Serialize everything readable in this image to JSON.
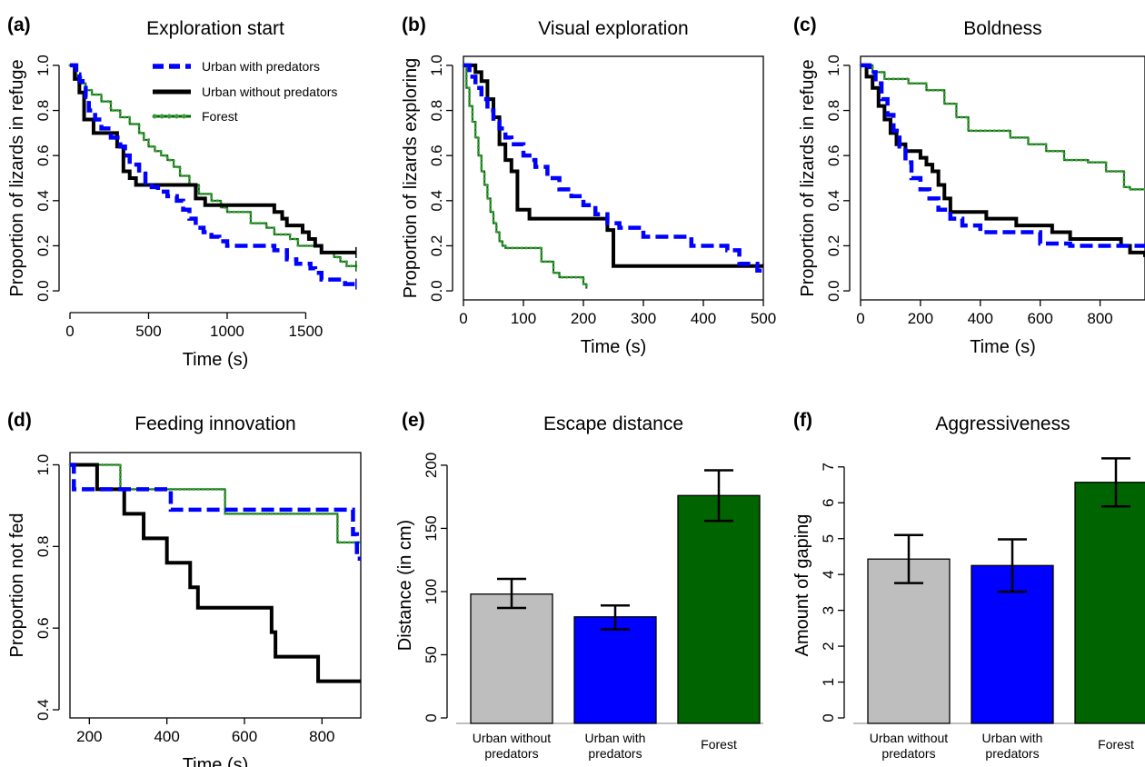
{
  "colors": {
    "urban_with": "#0000ff",
    "urban_without": "#000000",
    "forest": "#006400",
    "forest_dot": "#3a9a3a",
    "bar_urban_without": "#bebebe",
    "bar_urban_with": "#0000ff",
    "bar_forest": "#006400"
  },
  "legend": {
    "urban_with": "Urban with predators",
    "urban_without": "Urban without predators",
    "forest": "Forest"
  },
  "chart_data": [
    {
      "panel": "(a)",
      "type": "line",
      "step": true,
      "title": "Exploration start",
      "xlabel": "Time (s)",
      "ylabel": "Proportion of lizards in refuge",
      "xlim": [
        0,
        1850
      ],
      "ylim": [
        -0.04,
        1.04
      ],
      "xticks": [
        0,
        500,
        1000,
        1500
      ],
      "yticks": [
        0.0,
        0.2,
        0.4,
        0.6,
        0.8,
        1.0
      ],
      "ytick_labels": [
        "0.0",
        "0.2",
        "0.4",
        "0.6",
        "0.8",
        "1.0"
      ],
      "legend_position": "top-right",
      "series": [
        {
          "key": "urban_with",
          "name": "Urban with predators",
          "censored": true,
          "x": [
            0,
            40,
            60,
            80,
            100,
            120,
            160,
            200,
            260,
            320,
            350,
            380,
            440,
            480,
            520,
            560,
            620,
            680,
            720,
            760,
            800,
            850,
            900,
            950,
            1000,
            1150,
            1300,
            1380,
            1440,
            1530,
            1560,
            1600,
            1750,
            1820
          ],
          "y": [
            1.0,
            0.96,
            0.93,
            0.9,
            0.86,
            0.8,
            0.76,
            0.72,
            0.68,
            0.64,
            0.6,
            0.56,
            0.52,
            0.48,
            0.46,
            0.44,
            0.42,
            0.4,
            0.36,
            0.32,
            0.28,
            0.26,
            0.24,
            0.22,
            0.2,
            0.2,
            0.18,
            0.14,
            0.12,
            0.1,
            0.08,
            0.05,
            0.03,
            0.03
          ]
        },
        {
          "key": "urban_without",
          "name": "Urban without predators",
          "censored": true,
          "x": [
            0,
            30,
            60,
            90,
            150,
            300,
            340,
            380,
            420,
            520,
            580,
            800,
            860,
            1250,
            1300,
            1350,
            1380,
            1480,
            1520,
            1560,
            1600,
            1820
          ],
          "y": [
            1.0,
            0.94,
            0.88,
            0.76,
            0.7,
            0.64,
            0.53,
            0.5,
            0.47,
            0.47,
            0.47,
            0.41,
            0.38,
            0.38,
            0.35,
            0.32,
            0.29,
            0.26,
            0.23,
            0.2,
            0.17,
            0.17
          ]
        },
        {
          "key": "forest",
          "name": "Forest",
          "censored": true,
          "x": [
            0,
            40,
            70,
            100,
            140,
            200,
            260,
            320,
            380,
            440,
            470,
            500,
            540,
            580,
            620,
            660,
            700,
            760,
            820,
            900,
            960,
            1000,
            1150,
            1250,
            1300,
            1400,
            1450,
            1600,
            1680,
            1720,
            1760,
            1820
          ],
          "y": [
            1.0,
            0.95,
            0.92,
            0.89,
            0.87,
            0.84,
            0.8,
            0.77,
            0.74,
            0.7,
            0.67,
            0.64,
            0.62,
            0.6,
            0.58,
            0.55,
            0.51,
            0.47,
            0.43,
            0.4,
            0.37,
            0.35,
            0.3,
            0.28,
            0.25,
            0.23,
            0.2,
            0.17,
            0.15,
            0.13,
            0.11,
            0.11
          ]
        }
      ]
    },
    {
      "panel": "(b)",
      "type": "line",
      "step": true,
      "title": "Visual exploration",
      "xlabel": "Time (s)",
      "ylabel": "Proportion of lizards exploring",
      "xlim": [
        0,
        500
      ],
      "ylim": [
        -0.04,
        1.04
      ],
      "xticks": [
        0,
        100,
        200,
        300,
        400,
        500
      ],
      "yticks": [
        0.0,
        0.2,
        0.4,
        0.6,
        0.8,
        1.0
      ],
      "ytick_labels": [
        "0.0",
        "0.2",
        "0.4",
        "0.6",
        "0.8",
        "1.0"
      ],
      "series": [
        {
          "key": "urban_with",
          "name": "Urban with predators",
          "x": [
            0,
            10,
            20,
            30,
            40,
            50,
            60,
            70,
            80,
            100,
            110,
            120,
            140,
            160,
            180,
            200,
            220,
            240,
            260,
            300,
            380,
            440,
            460,
            490,
            500
          ],
          "y": [
            1.0,
            0.95,
            0.9,
            0.85,
            0.8,
            0.75,
            0.72,
            0.68,
            0.65,
            0.6,
            0.58,
            0.55,
            0.5,
            0.45,
            0.42,
            0.38,
            0.34,
            0.3,
            0.28,
            0.24,
            0.2,
            0.18,
            0.12,
            0.09,
            0.09
          ]
        },
        {
          "key": "urban_without",
          "name": "Urban without predators",
          "x": [
            0,
            20,
            30,
            40,
            50,
            60,
            70,
            80,
            90,
            110,
            160,
            240,
            250,
            500
          ],
          "y": [
            1.0,
            0.97,
            0.93,
            0.85,
            0.77,
            0.65,
            0.58,
            0.53,
            0.36,
            0.32,
            0.32,
            0.27,
            0.11,
            0.11
          ]
        },
        {
          "key": "forest",
          "name": "Forest",
          "x": [
            0,
            5,
            10,
            15,
            20,
            25,
            30,
            35,
            40,
            45,
            50,
            55,
            60,
            65,
            70,
            80,
            90,
            100,
            130,
            150,
            160,
            200,
            205
          ],
          "y": [
            1.0,
            0.9,
            0.82,
            0.75,
            0.68,
            0.6,
            0.53,
            0.47,
            0.41,
            0.35,
            0.3,
            0.26,
            0.22,
            0.2,
            0.19,
            0.19,
            0.19,
            0.19,
            0.13,
            0.08,
            0.06,
            0.03,
            0.01
          ]
        }
      ]
    },
    {
      "panel": "(c)",
      "type": "line",
      "step": true,
      "title": "Boldness",
      "xlabel": "Time (s)",
      "ylabel": "Proportion of lizards in refuge",
      "xlim": [
        0,
        950
      ],
      "ylim": [
        -0.04,
        1.04
      ],
      "xticks": [
        0,
        200,
        400,
        600,
        800
      ],
      "yticks": [
        0.0,
        0.2,
        0.4,
        0.6,
        0.8,
        1.0
      ],
      "ytick_labels": [
        "0.0",
        "0.2",
        "0.4",
        "0.6",
        "0.8",
        "1.0"
      ],
      "series": [
        {
          "key": "urban_with",
          "name": "Urban with predators",
          "x": [
            0,
            30,
            50,
            70,
            90,
            110,
            130,
            150,
            170,
            200,
            230,
            260,
            300,
            340,
            400,
            460,
            600,
            700,
            950
          ],
          "y": [
            1.0,
            0.97,
            0.92,
            0.85,
            0.78,
            0.71,
            0.64,
            0.57,
            0.5,
            0.45,
            0.41,
            0.36,
            0.32,
            0.29,
            0.26,
            0.26,
            0.21,
            0.2,
            0.2
          ]
        },
        {
          "key": "urban_without",
          "name": "Urban without predators",
          "x": [
            0,
            20,
            40,
            60,
            80,
            100,
            120,
            150,
            200,
            220,
            240,
            260,
            280,
            300,
            340,
            420,
            520,
            640,
            700,
            870,
            900,
            950
          ],
          "y": [
            1.0,
            0.95,
            0.9,
            0.82,
            0.76,
            0.7,
            0.65,
            0.62,
            0.59,
            0.56,
            0.53,
            0.47,
            0.41,
            0.35,
            0.35,
            0.32,
            0.29,
            0.26,
            0.23,
            0.2,
            0.17,
            0.15
          ]
        },
        {
          "key": "forest",
          "name": "Forest",
          "x": [
            0,
            40,
            80,
            160,
            220,
            280,
            320,
            360,
            440,
            480,
            500,
            560,
            620,
            680,
            760,
            820,
            880,
            900,
            950
          ],
          "y": [
            1.0,
            0.97,
            0.94,
            0.92,
            0.89,
            0.83,
            0.77,
            0.71,
            0.71,
            0.71,
            0.68,
            0.65,
            0.62,
            0.58,
            0.57,
            0.53,
            0.46,
            0.45,
            0.45
          ]
        }
      ]
    },
    {
      "panel": "(d)",
      "type": "line",
      "step": true,
      "title": "Feeding innovation",
      "xlabel": "Time (s)",
      "ylabel": "Proportion not fed",
      "xlim": [
        150,
        900
      ],
      "ylim": [
        0.38,
        1.03
      ],
      "xticks": [
        200,
        400,
        600,
        800
      ],
      "yticks": [
        0.4,
        0.6,
        0.8,
        1.0
      ],
      "ytick_labels": [
        "0.4",
        "0.6",
        "0.8",
        "1.0"
      ],
      "series": [
        {
          "key": "urban_with",
          "name": "Urban with predators",
          "x": [
            150,
            160,
            400,
            410,
            870,
            880,
            890,
            900
          ],
          "y": [
            1.0,
            0.94,
            0.94,
            0.89,
            0.89,
            0.83,
            0.77,
            0.77
          ]
        },
        {
          "key": "urban_without",
          "name": "Urban without predators",
          "x": [
            150,
            220,
            290,
            340,
            400,
            460,
            480,
            670,
            680,
            790,
            900
          ],
          "y": [
            1.0,
            0.94,
            0.88,
            0.82,
            0.76,
            0.7,
            0.65,
            0.59,
            0.53,
            0.47,
            0.47
          ]
        },
        {
          "key": "forest",
          "name": "Forest",
          "x": [
            150,
            280,
            550,
            840,
            900
          ],
          "y": [
            1.0,
            0.94,
            0.88,
            0.81,
            0.81
          ]
        }
      ]
    },
    {
      "panel": "(e)",
      "type": "bar",
      "title": "Escape distance",
      "xlabel": "",
      "ylabel": "Distance (in cm)",
      "ylim": [
        0,
        210
      ],
      "yticks": [
        0,
        50,
        100,
        150,
        200
      ],
      "ytick_labels": [
        "0",
        "50",
        "100",
        "150",
        "200"
      ],
      "categories": [
        "Urban without predators",
        "Urban with predators",
        "Forest"
      ],
      "category_lines": [
        [
          "Urban without",
          "predators"
        ],
        [
          "Urban with",
          "predators"
        ],
        [
          "Forest"
        ]
      ],
      "category_keys": [
        "bar_urban_without",
        "bar_urban_with",
        "bar_forest"
      ],
      "values": [
        98,
        80,
        176
      ],
      "error_low": [
        87,
        70,
        156
      ],
      "error_high": [
        110,
        89,
        196
      ]
    },
    {
      "panel": "(f)",
      "type": "bar",
      "title": "Aggressiveness",
      "xlabel": "",
      "ylabel": "Amount of gaping",
      "ylim": [
        0,
        7.4
      ],
      "yticks": [
        0,
        1,
        2,
        3,
        4,
        5,
        6,
        7
      ],
      "ytick_labels": [
        "0",
        "1",
        "2",
        "3",
        "4",
        "5",
        "6",
        "7"
      ],
      "categories": [
        "Urban without predators",
        "Urban with predators",
        "Forest"
      ],
      "category_lines": [
        [
          "Urban without",
          "predators"
        ],
        [
          "Urban with",
          "predators"
        ],
        [
          "Forest"
        ]
      ],
      "category_keys": [
        "bar_urban_without",
        "bar_urban_with",
        "bar_forest"
      ],
      "values": [
        4.43,
        4.25,
        6.57
      ],
      "error_low": [
        3.76,
        3.52,
        5.9
      ],
      "error_high": [
        5.1,
        4.98,
        7.24
      ]
    }
  ]
}
